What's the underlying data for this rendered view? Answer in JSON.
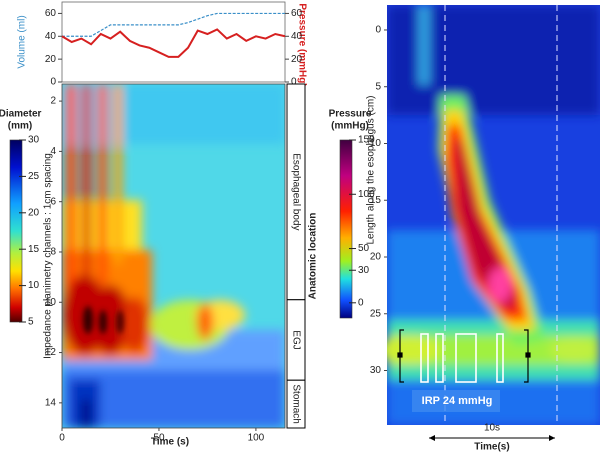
{
  "chart_data": [
    {
      "type": "line",
      "x": [
        0,
        5,
        10,
        15,
        20,
        25,
        30,
        35,
        40,
        45,
        50,
        55,
        60,
        65,
        70,
        75,
        80,
        85,
        90,
        95,
        100,
        105,
        110,
        115
      ],
      "series": [
        {
          "name": "Volume (ml)",
          "color": "#3a8fc8",
          "values": [
            40,
            40,
            40,
            40,
            45,
            50,
            50,
            50,
            50,
            50,
            50,
            50,
            50,
            52,
            55,
            58,
            60,
            60,
            60,
            60,
            60,
            60,
            60,
            60
          ]
        },
        {
          "name": "Pressure (mmHg)",
          "color": "#d62020",
          "axis": "y2",
          "values": [
            40,
            35,
            38,
            33,
            42,
            38,
            44,
            36,
            32,
            30,
            26,
            22,
            22,
            30,
            45,
            42,
            46,
            38,
            42,
            36,
            40,
            38,
            42,
            40
          ]
        }
      ],
      "xlim": [
        0,
        115
      ],
      "ylim": [
        0,
        70
      ],
      "yticks": [
        0,
        20,
        40,
        60
      ],
      "y2lim": [
        0,
        70
      ],
      "y2ticks": [
        0,
        20,
        40,
        60
      ]
    },
    {
      "type": "heatmap",
      "xlabel": "Time (s)",
      "ylabel": "Impedance planimetry channels : 1cm spacing",
      "xlim": [
        0,
        115
      ],
      "xticks": [
        0,
        50,
        100
      ],
      "ylim": [
        1.32,
        15
      ],
      "yticks": [
        2,
        4,
        6,
        8,
        10,
        12,
        14
      ],
      "colorbar_title": [
        "Diameter",
        "(mm)"
      ],
      "colorbar_lim": [
        5,
        30
      ],
      "colorbar_ticks": [
        5,
        10,
        15,
        20,
        25,
        30
      ],
      "region_title": "Anatomic location",
      "regions": [
        {
          "label": "Esophageal body",
          "start": 1.32,
          "end": 9.9
        },
        {
          "label": "EGJ",
          "start": 9.9,
          "end": 13.1
        },
        {
          "label": "Stomach",
          "start": 13.1,
          "end": 15
        }
      ]
    },
    {
      "type": "heatmap",
      "xlabel": "Time(s)",
      "ylabel": "Length along the esophagus (cm)",
      "ylim": [
        -2.2,
        34.8
      ],
      "yticks": [
        0,
        5,
        10,
        15,
        20,
        25,
        30
      ],
      "colorbar_title": [
        "Pressure",
        "(mmHg)"
      ],
      "colorbar_lim": [
        -14,
        150
      ],
      "colorbar_ticks": [
        0,
        30,
        50,
        100,
        150
      ],
      "annotations": [
        "IRP 24 mmHg",
        "10s"
      ]
    }
  ]
}
